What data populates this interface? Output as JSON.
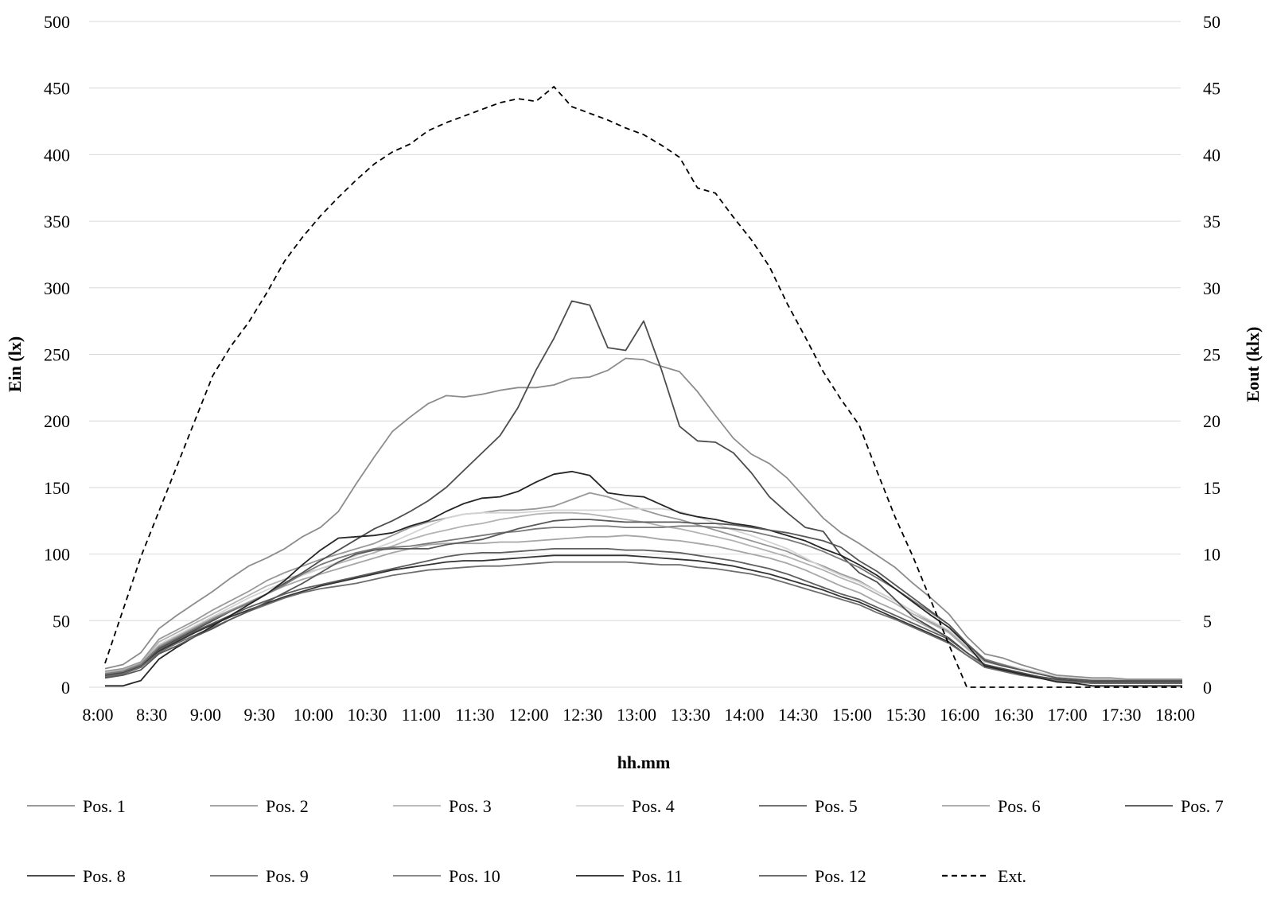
{
  "chart_data": {
    "type": "line",
    "xlabel": "hh.mm",
    "ylabel": "Ein (lx)",
    "y2label": "Eout (klx)",
    "ylim": [
      0,
      500
    ],
    "y2lim": [
      0,
      50
    ],
    "yticks": [
      0,
      50,
      100,
      150,
      200,
      250,
      300,
      350,
      400,
      450,
      500
    ],
    "y2ticks": [
      0,
      5,
      10,
      15,
      20,
      25,
      30,
      35,
      40,
      45,
      50
    ],
    "xticks": [
      "8:00",
      "8:30",
      "9:00",
      "9:30",
      "10:00",
      "10:30",
      "11:00",
      "11:30",
      "12:00",
      "12:30",
      "13:00",
      "13:30",
      "14:00",
      "14:30",
      "15:00",
      "15:30",
      "16:00",
      "16:30",
      "17:00",
      "17:30",
      "18:00"
    ],
    "x_interval_minutes": 10,
    "grid": true,
    "legend_position": "bottom",
    "series": [
      {
        "name": "Pos. 1",
        "axis": "left",
        "color": "#8c8c8c",
        "dash": "solid",
        "values": [
          14,
          17,
          26,
          44,
          54,
          63,
          72,
          82,
          91,
          97,
          104,
          113,
          120,
          132,
          153,
          173,
          192,
          203,
          213,
          219,
          218,
          220,
          223,
          225,
          225,
          227,
          232,
          233,
          238,
          247,
          246,
          241,
          237,
          222,
          204,
          187,
          175,
          168,
          157,
          142,
          127,
          116,
          108,
          99,
          90,
          78,
          67,
          55,
          38,
          25,
          22,
          17,
          13,
          9,
          8,
          7,
          7,
          6,
          6,
          6,
          6
        ]
      },
      {
        "name": "Pos. 2",
        "axis": "left",
        "color": "#999999",
        "dash": "solid",
        "values": [
          12,
          14,
          19,
          36,
          43,
          50,
          58,
          65,
          72,
          80,
          86,
          91,
          96,
          100,
          104,
          108,
          114,
          120,
          124,
          127,
          130,
          131,
          133,
          133,
          134,
          136,
          141,
          146,
          143,
          138,
          133,
          129,
          126,
          122,
          118,
          114,
          110,
          106,
          102,
          96,
          91,
          85,
          80,
          72,
          65,
          57,
          49,
          42,
          30,
          20,
          17,
          14,
          11,
          8,
          7,
          6,
          6,
          6,
          6,
          6,
          6
        ]
      },
      {
        "name": "Pos. 3",
        "axis": "left",
        "color": "#b3b3b3",
        "dash": "solid",
        "values": [
          11,
          13,
          18,
          34,
          41,
          48,
          55,
          62,
          69,
          76,
          81,
          85,
          89,
          93,
          97,
          101,
          106,
          111,
          115,
          118,
          121,
          123,
          126,
          128,
          130,
          131,
          131,
          130,
          128,
          126,
          124,
          121,
          119,
          116,
          113,
          110,
          106,
          102,
          98,
          93,
          88,
          82,
          77,
          70,
          63,
          55,
          48,
          41,
          29,
          19,
          16,
          13,
          10,
          8,
          7,
          6,
          6,
          5,
          5,
          5,
          5
        ]
      },
      {
        "name": "Pos. 4",
        "axis": "left",
        "color": "#d4d4d4",
        "dash": "solid",
        "values": [
          10,
          12,
          17,
          32,
          39,
          46,
          53,
          60,
          67,
          73,
          79,
          84,
          89,
          94,
          99,
          104,
          109,
          115,
          121,
          127,
          130,
          131,
          131,
          131,
          132,
          133,
          133,
          133,
          133,
          134,
          134,
          134,
          132,
          128,
          123,
          118,
          114,
          109,
          104,
          97,
          90,
          84,
          79,
          72,
          65,
          57,
          50,
          43,
          31,
          21,
          17,
          14,
          11,
          8,
          7,
          6,
          6,
          5,
          5,
          5,
          5
        ]
      },
      {
        "name": "Pos. 5",
        "axis": "left",
        "color": "#5e5e5e",
        "dash": "solid",
        "values": [
          9,
          11,
          16,
          28,
          35,
          42,
          48,
          54,
          60,
          65,
          70,
          74,
          77,
          80,
          83,
          86,
          89,
          92,
          95,
          98,
          100,
          101,
          101,
          102,
          103,
          104,
          104,
          104,
          104,
          103,
          103,
          102,
          101,
          99,
          97,
          95,
          92,
          89,
          85,
          80,
          75,
          70,
          66,
          60,
          54,
          48,
          42,
          36,
          26,
          16,
          13,
          10,
          7,
          5,
          4,
          3,
          3,
          3,
          3,
          3,
          3
        ]
      },
      {
        "name": "Pos. 6",
        "axis": "left",
        "color": "#a6a6a6",
        "dash": "solid",
        "values": [
          10,
          12,
          18,
          31,
          38,
          45,
          52,
          58,
          64,
          70,
          76,
          81,
          85,
          89,
          93,
          97,
          101,
          104,
          107,
          108,
          108,
          108,
          109,
          109,
          110,
          111,
          112,
          113,
          113,
          114,
          113,
          111,
          110,
          108,
          106,
          103,
          100,
          97,
          93,
          88,
          82,
          76,
          71,
          64,
          58,
          51,
          44,
          37,
          26,
          16,
          13,
          10,
          7,
          5,
          4,
          3,
          3,
          3,
          3,
          3,
          3
        ]
      },
      {
        "name": "Pos. 7",
        "axis": "left",
        "color": "#4d4d4d",
        "dash": "solid",
        "values": [
          9,
          11,
          16,
          29,
          36,
          43,
          50,
          57,
          63,
          70,
          78,
          86,
          95,
          103,
          111,
          119,
          125,
          132,
          140,
          150,
          163,
          176,
          189,
          210,
          238,
          262,
          290,
          287,
          255,
          253,
          275,
          238,
          196,
          185,
          184,
          176,
          161,
          143,
          131,
          120,
          117,
          99,
          86,
          79,
          66,
          53,
          45,
          37,
          26,
          17,
          14,
          11,
          8,
          6,
          5,
          4,
          4,
          4,
          4,
          4,
          4
        ]
      },
      {
        "name": "Pos. 8",
        "axis": "left",
        "color": "#333333",
        "dash": "solid",
        "values": [
          8,
          10,
          15,
          27,
          34,
          41,
          47,
          53,
          58,
          63,
          68,
          72,
          76,
          79,
          82,
          85,
          88,
          90,
          92,
          94,
          95,
          95,
          96,
          97,
          98,
          99,
          99,
          99,
          99,
          99,
          98,
          97,
          96,
          95,
          93,
          91,
          88,
          85,
          81,
          77,
          73,
          68,
          64,
          58,
          52,
          46,
          40,
          34,
          24,
          15,
          12,
          9,
          7,
          5,
          4,
          3,
          3,
          3,
          3,
          3,
          3
        ]
      },
      {
        "name": "Pos. 9",
        "axis": "left",
        "color": "#6e6e6e",
        "dash": "solid",
        "values": [
          8,
          10,
          15,
          26,
          33,
          39,
          45,
          51,
          57,
          62,
          67,
          71,
          74,
          76,
          78,
          81,
          84,
          86,
          88,
          89,
          90,
          91,
          91,
          92,
          93,
          94,
          94,
          94,
          94,
          94,
          93,
          92,
          92,
          90,
          89,
          87,
          85,
          82,
          78,
          74,
          70,
          66,
          62,
          56,
          51,
          45,
          39,
          33,
          24,
          15,
          12,
          9,
          7,
          5,
          4,
          3,
          3,
          3,
          3,
          3,
          3
        ]
      },
      {
        "name": "Pos. 10",
        "axis": "left",
        "color": "#7a7a7a",
        "dash": "solid",
        "values": [
          10,
          12,
          17,
          30,
          37,
          44,
          51,
          57,
          63,
          70,
          77,
          85,
          92,
          97,
          101,
          104,
          105,
          106,
          108,
          110,
          112,
          114,
          116,
          117,
          119,
          120,
          120,
          121,
          121,
          120,
          120,
          120,
          121,
          121,
          120,
          119,
          117,
          114,
          111,
          107,
          102,
          96,
          90,
          82,
          74,
          65,
          56,
          47,
          33,
          21,
          17,
          13,
          10,
          7,
          6,
          5,
          5,
          5,
          5,
          5,
          5
        ]
      },
      {
        "name": "Pos. 11",
        "axis": "left",
        "color": "#262626",
        "dash": "solid",
        "values": [
          1,
          1,
          5,
          21,
          30,
          38,
          46,
          54,
          62,
          70,
          80,
          92,
          103,
          112,
          113,
          114,
          116,
          121,
          125,
          132,
          138,
          142,
          143,
          147,
          154,
          160,
          162,
          159,
          146,
          144,
          143,
          137,
          131,
          128,
          126,
          123,
          121,
          118,
          114,
          110,
          104,
          99,
          92,
          84,
          74,
          64,
          54,
          45,
          32,
          16,
          13,
          10,
          7,
          4,
          3,
          1,
          1,
          1,
          1,
          1,
          1
        ]
      },
      {
        "name": "Pos. 12",
        "axis": "left",
        "color": "#585858",
        "dash": "solid",
        "values": [
          7,
          9,
          13,
          25,
          31,
          38,
          44,
          51,
          57,
          64,
          71,
          78,
          86,
          94,
          100,
          103,
          104,
          104,
          104,
          107,
          109,
          111,
          115,
          119,
          122,
          125,
          126,
          126,
          125,
          124,
          124,
          124,
          124,
          123,
          123,
          122,
          120,
          118,
          116,
          113,
          110,
          105,
          95,
          87,
          77,
          67,
          57,
          47,
          33,
          20,
          16,
          13,
          10,
          7,
          6,
          5,
          5,
          5,
          5,
          5,
          5
        ]
      },
      {
        "name": "Ext.",
        "axis": "right",
        "color": "#000000",
        "dash": "dashed",
        "values": [
          1.8,
          5.8,
          9.8,
          13.2,
          16.6,
          20,
          23.4,
          25.6,
          27.4,
          29.6,
          32,
          33.8,
          35.4,
          36.8,
          38.1,
          39.3,
          40.2,
          40.8,
          41.8,
          42.4,
          42.9,
          43.4,
          43.9,
          44.2,
          44,
          45.1,
          43.6,
          43.1,
          42.6,
          42,
          41.5,
          40.7,
          39.8,
          37.5,
          37.1,
          35.3,
          33.6,
          31.6,
          28.8,
          26.3,
          23.7,
          21.6,
          19.7,
          16.2,
          12.8,
          9.8,
          6.5,
          3.2,
          0,
          0,
          0,
          0,
          0,
          0,
          0,
          0,
          0,
          0,
          0,
          0,
          0
        ]
      }
    ]
  }
}
